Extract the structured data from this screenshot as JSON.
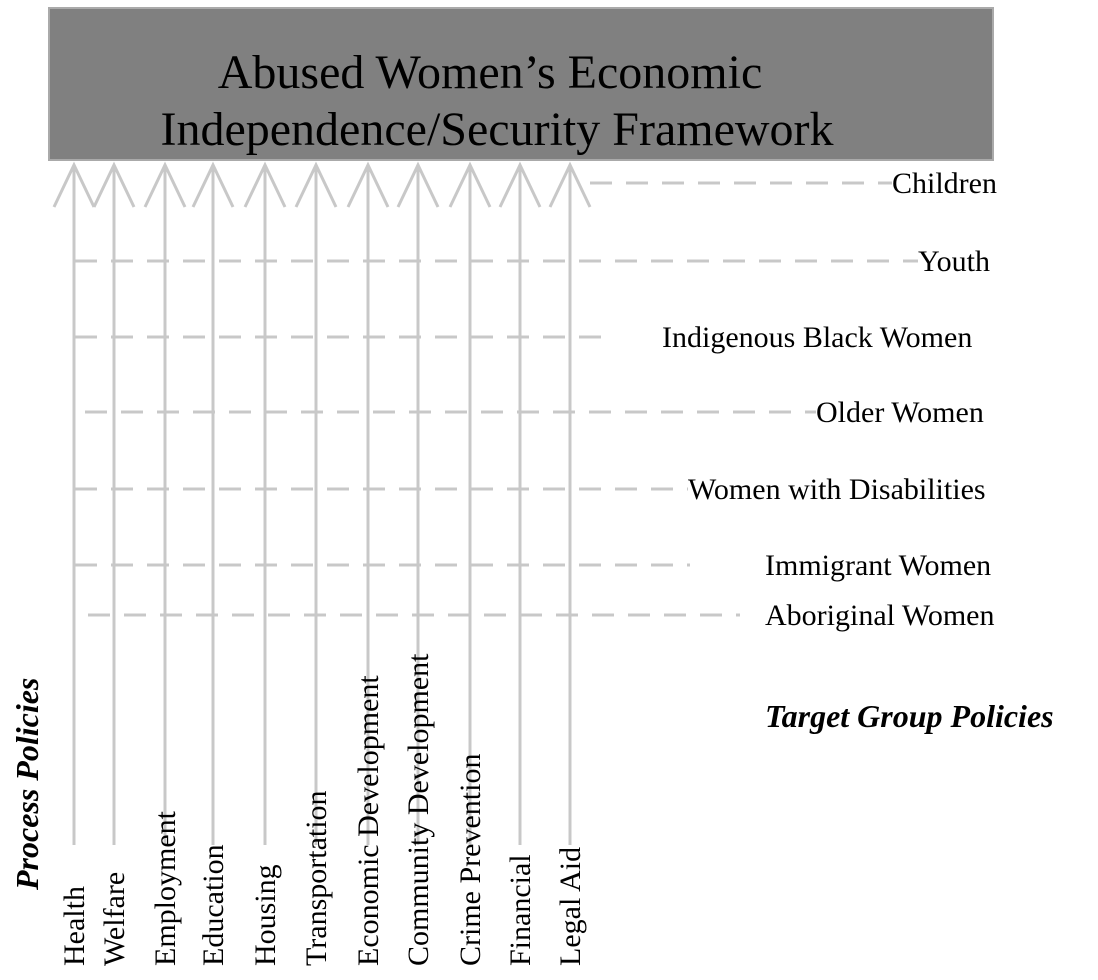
{
  "header": {
    "title_lines": [
      "Abused Women’s Economic",
      "Independence/Security Framework"
    ]
  },
  "process_policies": {
    "label": "Process Policies",
    "items": [
      "Health",
      "Welfare",
      "Employment",
      "Education",
      "Housing",
      "Transportation",
      "Economic Development",
      "Community Development",
      "Crime Prevention",
      "Financial",
      "Legal Aid"
    ]
  },
  "target_group_policies": {
    "label": "Target Group Policies",
    "items": [
      "Children",
      "Youth",
      "Indigenous Black Women",
      "Older Women",
      "Women with Disabilities",
      "Immigrant Women",
      "Aboriginal Women"
    ]
  }
}
